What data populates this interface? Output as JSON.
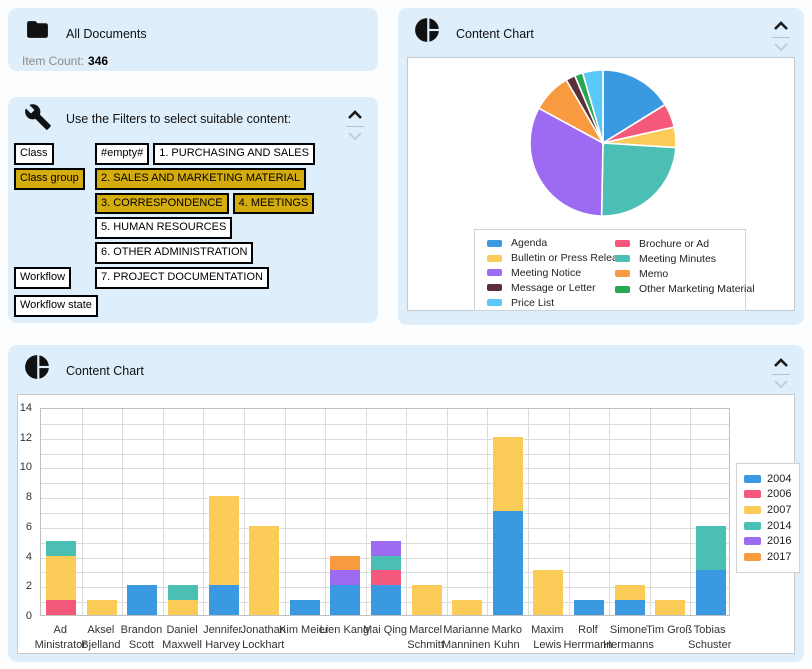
{
  "panel_color": "#DEEEFB",
  "accent_gold": "#D4AC0D",
  "icons": {
    "all_documents": "folder-icon",
    "filters": "wrench-icon",
    "content_chart": "pie-chart-icon",
    "collapse": "chevron-up-icon / chevron-down-icon"
  },
  "all_documents": {
    "title": "All Documents",
    "item_count_label": "Item Count:",
    "item_count_value": "346"
  },
  "filters": {
    "instruction": "Use the Filters to select suitable content:",
    "facet_buttons": [
      {
        "label": "Class",
        "selected": false
      },
      {
        "label": "Class group",
        "selected": true
      }
    ],
    "class_buttons": [
      {
        "label": "#empty#",
        "selected": false
      },
      {
        "label": "1. PURCHASING AND SALES",
        "selected": false
      },
      {
        "label": "2. SALES AND MARKETING MATERIAL",
        "selected": true
      },
      {
        "label": "3. CORRESPONDENCE",
        "selected": true
      },
      {
        "label": "4. MEETINGS",
        "selected": true
      },
      {
        "label": "5. HUMAN RESOURCES",
        "selected": false
      },
      {
        "label": "6. OTHER ADMINISTRATION",
        "selected": false
      },
      {
        "label": "7. PROJECT DOCUMENTATION",
        "selected": false
      }
    ],
    "workflow_buttons": [
      {
        "label": "Workflow"
      },
      {
        "label": "Workflow state"
      }
    ]
  },
  "pie_panel": {
    "title": "Content Chart"
  },
  "bar_panel": {
    "title": "Content Chart"
  },
  "chart_data": [
    {
      "type": "pie",
      "title": "Content Chart",
      "slices_clockwise_from_top": [
        {
          "label": "Agenda",
          "color": "#3B99E1",
          "percent": 16.2
        },
        {
          "label": "Brochure or Ad",
          "color": "#F4597B",
          "percent": 5.3
        },
        {
          "label": "Bulletin or Press Release",
          "color": "#FBCB57",
          "percent": 4.5
        },
        {
          "label": "Meeting Minutes",
          "color": "#4BBFB4",
          "percent": 24.3
        },
        {
          "label": "Meeting Notice",
          "color": "#9C6BF2",
          "percent": 32.6
        },
        {
          "label": "Memo",
          "color": "#F89A40",
          "percent": 8.7
        },
        {
          "label": "Message or Letter",
          "color": "#5D3038",
          "percent": 2.1
        },
        {
          "label": "Other Marketing Material",
          "color": "#28A750",
          "percent": 1.8
        },
        {
          "label": "Price List",
          "color": "#5BC8F7",
          "percent": 4.5
        }
      ],
      "legend_columns": [
        [
          "Agenda",
          "Bulletin or Press Release",
          "Meeting Notice",
          "Message or Letter",
          "Price List"
        ],
        [
          "Brochure or Ad",
          "Meeting Minutes",
          "Memo",
          "Other Marketing Material"
        ]
      ],
      "legend_position": "bottom"
    },
    {
      "type": "stacked-bar",
      "title": "Content Chart",
      "categories": [
        "Ad Ministrator",
        "Aksel Bjelland",
        "Brandon Scott",
        "Daniel Maxwell",
        "Jennifer Harvey",
        "Jonathan Lockhart",
        "Kim Meier",
        "Lien Kang",
        "Mai Qing",
        "Marcel Schmitt",
        "Marianne Manninen",
        "Marko Kuhn",
        "Maxim Lewis",
        "Rolf Herrmann",
        "Simone Hermanns",
        "Tim Groß",
        "Tobias Schuster"
      ],
      "series": [
        {
          "name": "2004",
          "color": "#3B99E1",
          "values": [
            0,
            0,
            2,
            0,
            2,
            0,
            1,
            2,
            2,
            0,
            0,
            7,
            0,
            1,
            1,
            0,
            3
          ]
        },
        {
          "name": "2006",
          "color": "#F4597B",
          "values": [
            1,
            0,
            0,
            0,
            0,
            0,
            0,
            0,
            1,
            0,
            0,
            0,
            0,
            0,
            0,
            0,
            0
          ]
        },
        {
          "name": "2007",
          "color": "#FBCB57",
          "values": [
            3,
            1,
            0,
            1,
            6,
            6,
            0,
            0,
            0,
            2,
            1,
            5,
            3,
            0,
            1,
            1,
            0
          ]
        },
        {
          "name": "2014",
          "color": "#4BBFB4",
          "values": [
            1,
            0,
            0,
            1,
            0,
            0,
            0,
            0,
            1,
            0,
            0,
            0,
            0,
            0,
            0,
            0,
            3
          ]
        },
        {
          "name": "2016",
          "color": "#9C6BF2",
          "values": [
            0,
            0,
            0,
            0,
            0,
            0,
            0,
            1,
            1,
            0,
            0,
            0,
            0,
            0,
            0,
            0,
            0
          ]
        },
        {
          "name": "2017",
          "color": "#F89A40",
          "values": [
            0,
            0,
            0,
            0,
            0,
            0,
            0,
            1,
            0,
            0,
            0,
            0,
            0,
            0,
            0,
            0,
            0
          ]
        }
      ],
      "ylim": [
        0,
        14
      ],
      "ytick_step": 2,
      "grid_step": 1,
      "grid": true,
      "legend_position": "right",
      "xlabel": "",
      "ylabel": ""
    }
  ]
}
